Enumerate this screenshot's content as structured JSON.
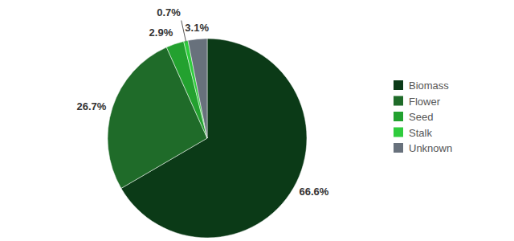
{
  "chart_data": {
    "type": "pie",
    "categories": [
      "Biomass",
      "Flower",
      "Seed",
      "Stalk",
      "Unknown"
    ],
    "values": [
      66.6,
      26.7,
      2.9,
      0.7,
      3.1
    ],
    "value_labels": [
      "66.6%",
      "26.7%",
      "2.9%",
      "0.7%",
      "3.1%"
    ],
    "colors": [
      "#0b3a17",
      "#1f6b29",
      "#23a12f",
      "#2fcc3d",
      "#68717c"
    ],
    "data_labels": true,
    "legend": "right"
  }
}
